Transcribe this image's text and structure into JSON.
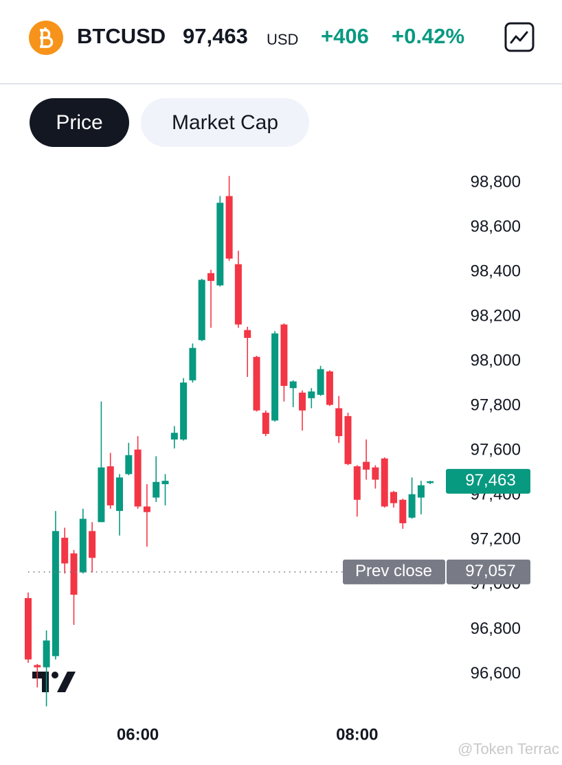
{
  "header": {
    "symbol": "BTCUSD",
    "price": "97,463",
    "currency": "USD",
    "change": "+406",
    "change_percent": "+0.42%"
  },
  "tabs": [
    "Price",
    "Market Cap"
  ],
  "watermark": "@Token Terrac",
  "chart_data": {
    "type": "candlestick",
    "categories": [
      null,
      null,
      null,
      null,
      null,
      null,
      null,
      null,
      null,
      null,
      null,
      null,
      "06:00",
      null,
      null,
      null,
      null,
      null,
      null,
      null,
      null,
      null,
      null,
      null,
      null,
      null,
      null,
      null,
      null,
      null,
      null,
      null,
      null,
      null,
      null,
      null,
      "08:00",
      null,
      null,
      null,
      null,
      null,
      null,
      null,
      null
    ],
    "open": [
      96940,
      96640,
      96630,
      96680,
      97210,
      97140,
      97055,
      97240,
      97280,
      97530,
      97330,
      97495,
      97605,
      97350,
      97390,
      97450,
      97650,
      97650,
      97915,
      98095,
      98395,
      98340,
      98740,
      98435,
      98140,
      98020,
      97770,
      97735,
      98165,
      97880,
      97860,
      97835,
      97850,
      97955,
      97790,
      97755,
      97530,
      97550,
      97525,
      97565,
      97415,
      97380,
      97300,
      97390,
      97455
    ],
    "high": [
      96965,
      96645,
      96795,
      97330,
      97255,
      97155,
      97340,
      97280,
      97820,
      97590,
      97495,
      97635,
      97665,
      97450,
      97575,
      97495,
      97710,
      97925,
      98080,
      98370,
      98410,
      98740,
      98830,
      98495,
      98155,
      98025,
      97780,
      98135,
      98170,
      97915,
      97870,
      97880,
      97980,
      97960,
      97845,
      97770,
      97535,
      97650,
      97535,
      97570,
      97420,
      97385,
      97480,
      97465,
      97465
    ],
    "low": [
      96650,
      96540,
      96455,
      96665,
      97050,
      96820,
      97050,
      97055,
      97280,
      97340,
      97220,
      97490,
      97340,
      97170,
      97370,
      97355,
      97610,
      97645,
      97905,
      98090,
      98150,
      98335,
      98450,
      98150,
      97930,
      97775,
      97665,
      97730,
      97820,
      97795,
      97690,
      97790,
      97845,
      97800,
      97635,
      97535,
      97305,
      97470,
      97430,
      97345,
      97345,
      97250,
      97295,
      97315,
      97450
    ],
    "close": [
      96665,
      96630,
      96750,
      97240,
      97095,
      96955,
      97295,
      97120,
      97525,
      97355,
      97480,
      97580,
      97350,
      97325,
      97460,
      97465,
      97680,
      97905,
      98060,
      98365,
      98360,
      98710,
      98460,
      98165,
      98105,
      97780,
      97675,
      98125,
      97890,
      97910,
      97780,
      97865,
      97965,
      97805,
      97665,
      97540,
      97380,
      97515,
      97470,
      97350,
      97365,
      97275,
      97405,
      97445,
      97463
    ],
    "up_color": "#089981",
    "down_color": "#f23645",
    "ylim": [
      96420,
      98880
    ],
    "yticks": [
      {
        "value": 96600,
        "label": "96,600"
      },
      {
        "value": 96800,
        "label": "96,800"
      },
      {
        "value": 97000,
        "label": "97,000"
      },
      {
        "value": 97200,
        "label": "97,200"
      },
      {
        "value": 97400,
        "label": "97,400"
      },
      {
        "value": 97600,
        "label": "97,600"
      },
      {
        "value": 97800,
        "label": "97,800"
      },
      {
        "value": 98000,
        "label": "98,000"
      },
      {
        "value": 98200,
        "label": "98,200"
      },
      {
        "value": 98400,
        "label": "98,400"
      },
      {
        "value": 98600,
        "label": "98,600"
      },
      {
        "value": 98800,
        "label": "98,800"
      }
    ],
    "last_price": {
      "value": 97463,
      "label": "97,463"
    },
    "prev_close": {
      "name": "Prev close",
      "value": 97057,
      "label": "97,057"
    },
    "grid": false
  }
}
